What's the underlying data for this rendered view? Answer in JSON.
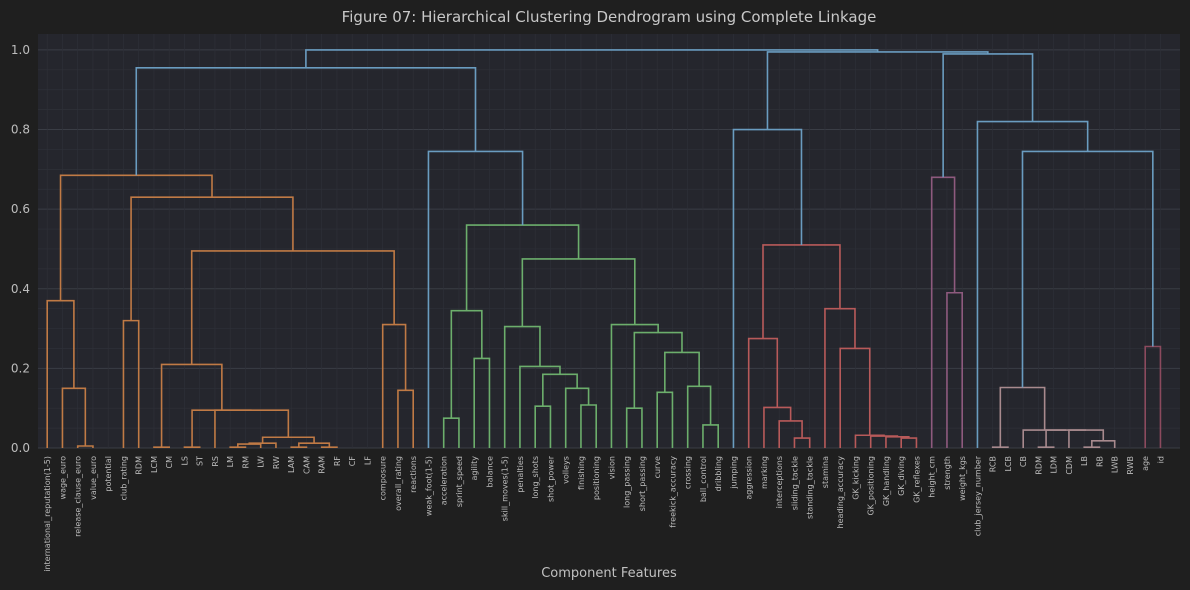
{
  "chart_data": {
    "type": "dendrogram",
    "title": "Figure 07: Hierarchical Clustering Dendrogram using Complete Linkage",
    "xlabel": "Component Features",
    "ylabel": "",
    "ylim": [
      0,
      1.04
    ],
    "yticks": [
      0.0,
      0.2,
      0.4,
      0.6,
      0.8,
      1.0
    ],
    "grid": true,
    "leaves": [
      "international_reputation(1-5)",
      "wage_euro",
      "release_clause_euro",
      "value_euro",
      "potential",
      "club_rating",
      "RDM",
      "LCM",
      "CM",
      "LS",
      "ST",
      "RS",
      "LM",
      "RM",
      "LW",
      "RW",
      "LAM",
      "CAM",
      "RAM",
      "RF",
      "CF",
      "LF",
      "composure",
      "overall_rating",
      "reactions",
      "weak_foot(1-5)",
      "acceleration",
      "sprint_speed",
      "agility",
      "balance",
      "skill_moves(1-5)",
      "penalties",
      "long_shots",
      "shot_power",
      "volleys",
      "finishing",
      "positioning",
      "vision",
      "long_passing",
      "short_passing",
      "curve",
      "freekick_accuracy",
      "crossing",
      "ball_control",
      "dribbling",
      "jumping",
      "aggression",
      "marking",
      "interceptions",
      "sliding_tackle",
      "standing_tackle",
      "stamina",
      "heading_accuracy",
      "GK_kicking",
      "GK_positioning",
      "GK_handling",
      "GK_diving",
      "GK_reflexes",
      "height_cm",
      "strength",
      "weight_kgs",
      "club_jersey_number",
      "RCB",
      "LCB",
      "CB",
      "RDM",
      "LDM",
      "CDM",
      "LB",
      "RB",
      "LWB",
      "RWB",
      "age",
      "id"
    ],
    "cluster_colors": {
      "orange": "#c07a45",
      "green": "#6cae6c",
      "red": "#b85a5a",
      "purple": "#8e5a7e",
      "pink": "#a88a8e",
      "blue": "#6a9cc0",
      "maroon": "#8c4a5e"
    },
    "links": [
      {
        "x": [
          "wage_euro",
          "release_clause_euro"
        ],
        "h": 0.15,
        "color": "orange"
      },
      {
        "x": [
          "value_euro",
          "potential"
        ],
        "h": 0.005,
        "color": "orange"
      },
      {
        "x": [
          "international_reputation(1-5)",
          "wage_euro"
        ],
        "h": 0.37,
        "color": "orange"
      }
    ]
  }
}
